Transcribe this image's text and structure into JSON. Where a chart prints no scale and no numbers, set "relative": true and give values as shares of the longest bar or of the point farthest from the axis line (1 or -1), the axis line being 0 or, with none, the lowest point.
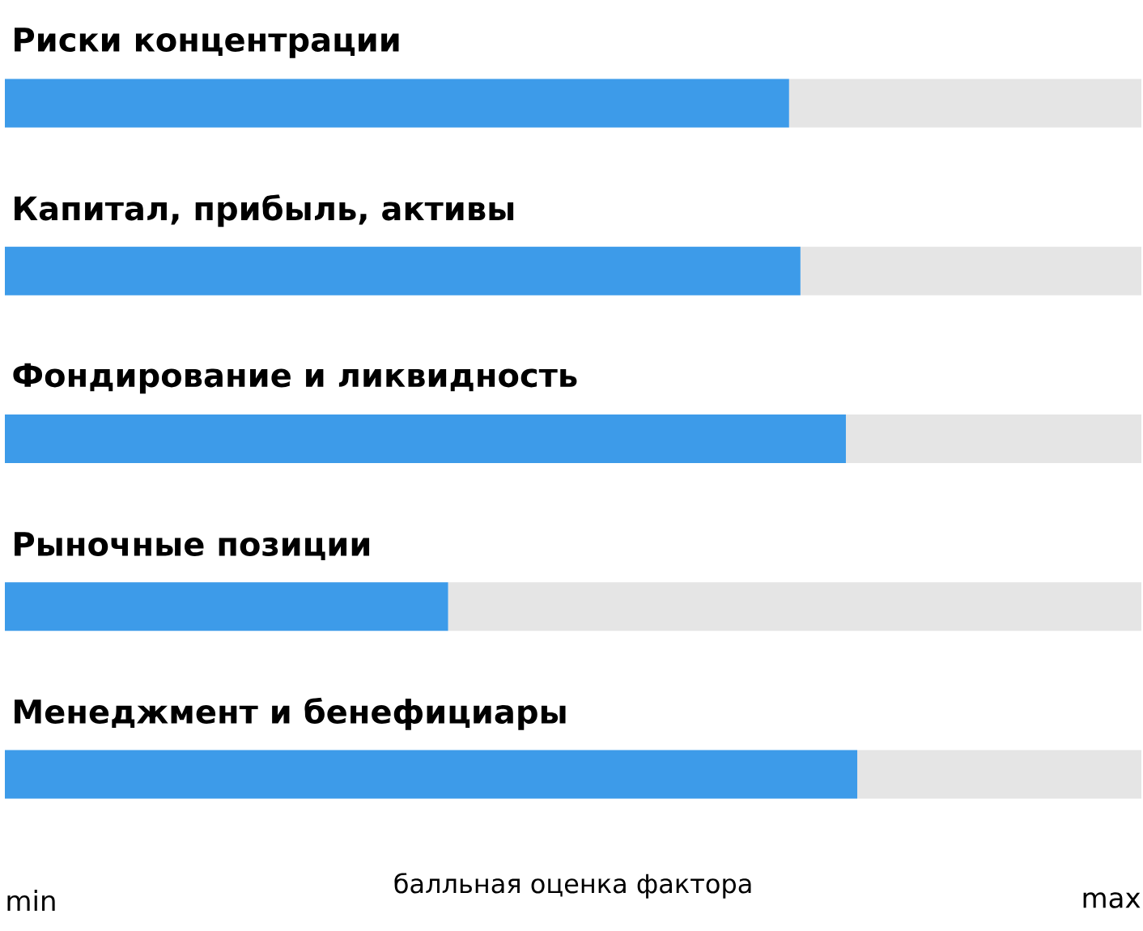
{
  "chart_data": {
    "type": "bar",
    "orientation": "horizontal",
    "stacked": true,
    "relative": true,
    "xlabel": "балльная оценка фактора",
    "categories": [
      "Риски концентрации",
      "Капитал, прибыль, активы",
      "Фондирование и ликвидность",
      "Рыночные позиции",
      "Менеджмент и бенефициары"
    ],
    "series": [
      {
        "color": "#3d9be9",
        "values": [
          0.69,
          0.7,
          0.74,
          0.39,
          0.75
        ]
      },
      {
        "color": "#e5e5e5",
        "values": [
          0.31,
          0.3,
          0.26,
          0.61,
          0.25
        ]
      }
    ],
    "annotations": [
      "min",
      "max"
    ]
  }
}
